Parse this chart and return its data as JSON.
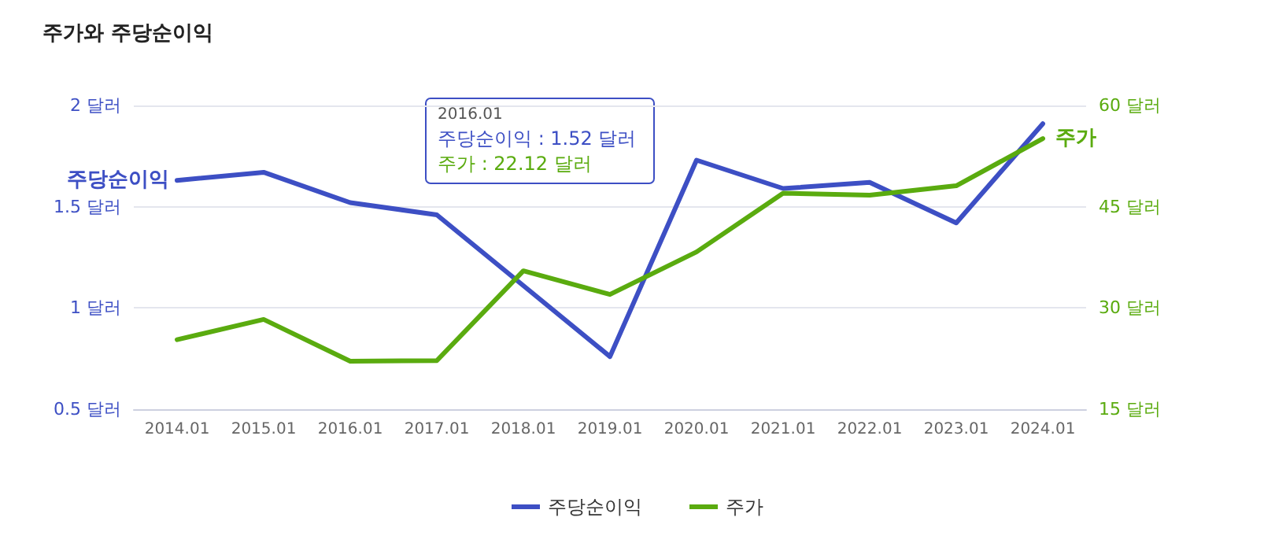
{
  "chart_data": {
    "type": "line",
    "title": "주가와 주당순이익",
    "categories": [
      "2014.01",
      "2015.01",
      "2016.01",
      "2017.01",
      "2018.01",
      "2019.01",
      "2020.01",
      "2021.01",
      "2022.01",
      "2023.01",
      "2024.01"
    ],
    "series": [
      {
        "name": "주당순이익",
        "color": "#3d4fc4",
        "values": [
          1.63,
          1.67,
          1.52,
          1.46,
          1.11,
          0.76,
          1.73,
          1.59,
          1.62,
          1.42,
          1.91
        ]
      },
      {
        "name": "주가",
        "color": "#5aab0f",
        "axis": "y2",
        "values": [
          25.3,
          28.3,
          22.12,
          22.2,
          35.5,
          32.0,
          38.3,
          47.0,
          46.7,
          48.1,
          55.1
        ]
      }
    ],
    "ylim": [
      0.5,
      2
    ],
    "yticks": [
      {
        "value": 0.5,
        "label": "0.5 달러"
      },
      {
        "value": 1,
        "label": "1 달러"
      },
      {
        "value": 1.5,
        "label": "1.5 달러"
      },
      {
        "value": 2,
        "label": "2 달러"
      }
    ],
    "y2lim": [
      15,
      60
    ],
    "y2ticks": [
      {
        "value": 15,
        "label": "15 달러"
      },
      {
        "value": 30,
        "label": "30 달러"
      },
      {
        "value": 45,
        "label": "45 달러"
      },
      {
        "value": 60,
        "label": "60 달러"
      }
    ],
    "annotations": [
      "2016.01",
      "주당순이익 : 1.52 달러",
      "주가 : 22.12 달러"
    ],
    "grid": "y",
    "legend": "bottom",
    "marker": "none",
    "line_style": "solid"
  }
}
